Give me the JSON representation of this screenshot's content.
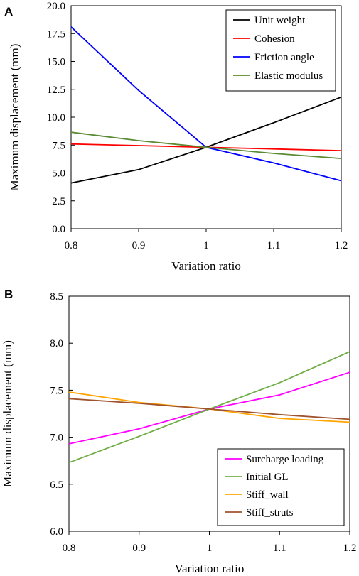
{
  "chart_data": [
    {
      "panel": "A",
      "type": "line",
      "xlabel": "Variation ratio",
      "ylabel": "Maximum displacement (mm)",
      "xlim": [
        0.8,
        1.2
      ],
      "ylim": [
        0.0,
        20.0
      ],
      "xticks": [
        "0.8",
        "0.9",
        "1",
        "1.1",
        "1.2"
      ],
      "yticks": [
        "0.0",
        "2.5",
        "5.0",
        "7.5",
        "10.0",
        "12.5",
        "15.0",
        "17.5",
        "20.0"
      ],
      "x": [
        0.8,
        0.9,
        1.0,
        1.1,
        1.2
      ],
      "legend_position": "top-right",
      "grid": false,
      "series": [
        {
          "name": "Unit weight",
          "color": "#000000",
          "values": [
            4.1,
            5.3,
            7.3,
            9.5,
            11.8
          ]
        },
        {
          "name": "Cohesion",
          "color": "#ff0000",
          "values": [
            7.6,
            7.45,
            7.3,
            7.15,
            7.0
          ]
        },
        {
          "name": "Friction angle",
          "color": "#0000ff",
          "values": [
            18.1,
            12.4,
            7.3,
            5.9,
            4.3
          ]
        },
        {
          "name": "Elastic modulus",
          "color": "#5a8a32",
          "values": [
            8.65,
            7.9,
            7.3,
            6.75,
            6.3
          ]
        }
      ]
    },
    {
      "panel": "B",
      "type": "line",
      "xlabel": "Variation ratio",
      "ylabel": "Maximum displacement (mm)",
      "xlim": [
        0.8,
        1.2
      ],
      "ylim": [
        6.0,
        8.5
      ],
      "xticks": [
        "0.8",
        "0.9",
        "1",
        "1.1",
        "1.2"
      ],
      "yticks": [
        "6.0",
        "6.5",
        "7.0",
        "7.5",
        "8.0",
        "8.5"
      ],
      "x": [
        0.8,
        0.9,
        1.0,
        1.1,
        1.2
      ],
      "legend_position": "bottom-right",
      "grid": false,
      "series": [
        {
          "name": "Surcharge loading",
          "color": "#ff00ff",
          "values": [
            6.93,
            7.09,
            7.3,
            7.45,
            7.69
          ]
        },
        {
          "name": "Initial GL",
          "color": "#70ad47",
          "values": [
            6.73,
            7.01,
            7.3,
            7.58,
            7.91
          ]
        },
        {
          "name": "Stiff_wall",
          "color": "#ffa500",
          "values": [
            7.48,
            7.37,
            7.3,
            7.2,
            7.16
          ]
        },
        {
          "name": "Stiff_struts",
          "color": "#a0522d",
          "values": [
            7.41,
            7.36,
            7.3,
            7.24,
            7.19
          ]
        }
      ]
    }
  ]
}
